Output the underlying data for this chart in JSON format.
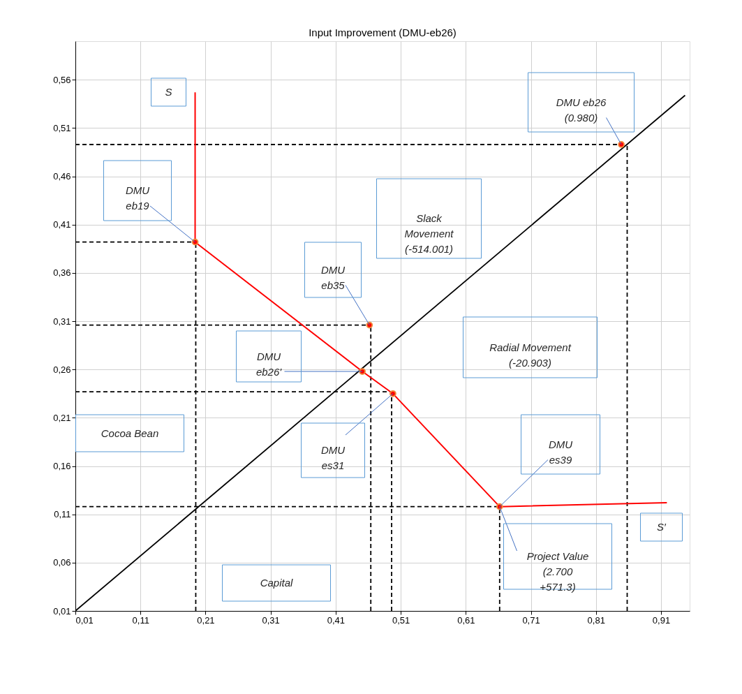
{
  "chart_data": {
    "type": "line",
    "title": "Input Improvement (DMU-eb26)",
    "xlabel": "Capital",
    "ylabel": "Cocoa Bean",
    "xlim": [
      0.01,
      0.954
    ],
    "ylim": [
      0.01,
      0.6
    ],
    "xticks": [
      {
        "value": 0.01,
        "label": "0,01"
      },
      {
        "value": 0.11,
        "label": "0,11"
      },
      {
        "value": 0.21,
        "label": "0,21"
      },
      {
        "value": 0.31,
        "label": "0,31"
      },
      {
        "value": 0.41,
        "label": "0,41"
      },
      {
        "value": 0.51,
        "label": "0,51"
      },
      {
        "value": 0.61,
        "label": "0,61"
      },
      {
        "value": 0.71,
        "label": "0,71"
      },
      {
        "value": 0.81,
        "label": "0,81"
      },
      {
        "value": 0.91,
        "label": "0,91"
      }
    ],
    "yticks": [
      {
        "value": 0.01,
        "label": "0,01"
      },
      {
        "value": 0.06,
        "label": "0,06"
      },
      {
        "value": 0.11,
        "label": "0,11"
      },
      {
        "value": 0.16,
        "label": "0,16"
      },
      {
        "value": 0.21,
        "label": "0,21"
      },
      {
        "value": 0.26,
        "label": "0,26"
      },
      {
        "value": 0.31,
        "label": "0,31"
      },
      {
        "value": 0.36,
        "label": "0,36"
      },
      {
        "value": 0.41,
        "label": "0,41"
      },
      {
        "value": 0.46,
        "label": "0,46"
      },
      {
        "value": 0.51,
        "label": "0,51"
      },
      {
        "value": 0.56,
        "label": "0,56"
      }
    ],
    "grid": true,
    "series": [
      {
        "type": "line",
        "color": "#000000",
        "line_style": "dashed",
        "x": [
          0.01,
          0.194,
          null,
          0.01,
          0.464,
          null,
          0.01,
          0.498,
          null,
          0.01,
          0.662,
          null,
          0.01,
          0.858,
          null,
          0.195,
          0.195,
          null,
          0.464,
          0.464,
          null,
          0.496,
          0.496,
          null,
          0.662,
          0.662,
          null,
          0.858,
          0.858
        ],
        "values": [
          0.392,
          0.392,
          null,
          0.306,
          0.306,
          null,
          0.237,
          0.237,
          null,
          0.118,
          0.118,
          null,
          0.493,
          0.493,
          null,
          0.01,
          0.392,
          null,
          0.01,
          0.306,
          null,
          0.01,
          0.237,
          null,
          0.01,
          0.118,
          null,
          0.01,
          0.493
        ]
      },
      {
        "type": "line",
        "color": "#000000",
        "line_style": "solid",
        "x": [
          0.01,
          0.947
        ],
        "values": [
          0.01,
          0.544
        ]
      },
      {
        "type": "line",
        "color": "#ff0000",
        "line_style": "solid",
        "x": [
          0.194,
          0.194,
          0.451,
          0.498,
          0.662,
          0.919
        ],
        "values": [
          0.547,
          0.392,
          0.258,
          0.235,
          0.118,
          0.122
        ]
      },
      {
        "type": "scatter",
        "color": "#ff0000",
        "marker": "circle",
        "x": [
          0.194,
          0.462,
          0.451,
          0.498,
          0.662,
          0.849
        ],
        "values": [
          0.392,
          0.306,
          0.258,
          0.235,
          0.118,
          0.493
        ]
      }
    ],
    "annotations": [
      "S",
      {
        "text": "DMU\neb19",
        "x": 0.194,
        "y": 0.392
      },
      "Slack\nMovement\n(-514.001)",
      {
        "text": "DMU\neb35",
        "x": 0.462,
        "y": 0.306
      },
      {
        "text": "DMU eb26\n(0.980)",
        "x": 0.849,
        "y": 0.493
      },
      {
        "text": "DMU\neb26'",
        "x": 0.451,
        "y": 0.258
      },
      "Radial Movement\n(-20.903)",
      {
        "text": "DMU\nes31",
        "x": 0.498,
        "y": 0.235
      },
      {
        "text": "DMU\nes39",
        "x": 0.662,
        "y": 0.118
      },
      {
        "text": "Project Value\n(2.700\n+571.3)",
        "x": 0.662,
        "y": 0.118
      },
      "S′"
    ]
  }
}
